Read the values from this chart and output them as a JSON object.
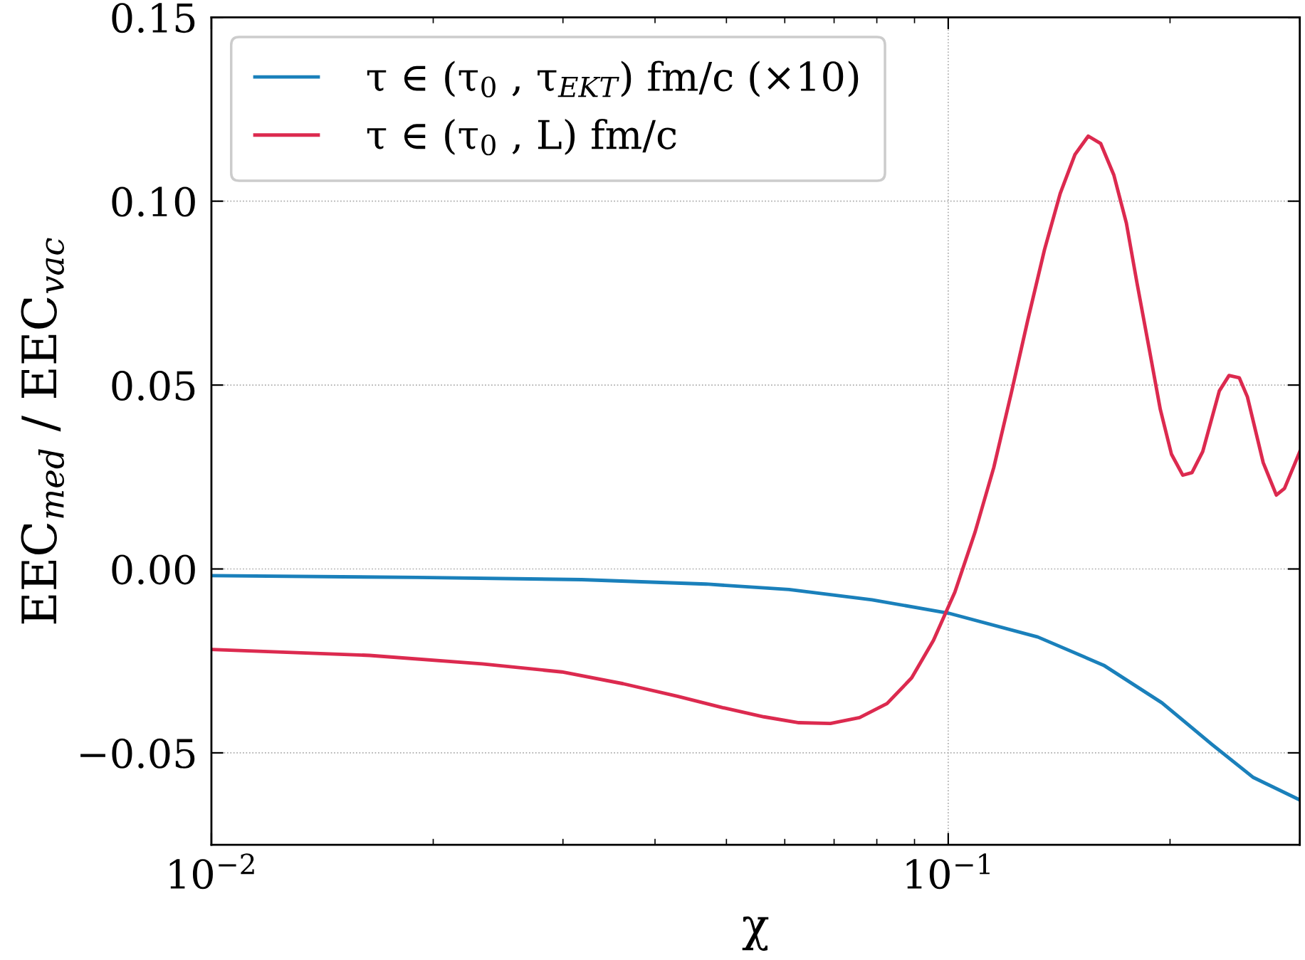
{
  "chart_data": {
    "type": "line",
    "xlabel": "χ",
    "ylabel": "EEC$_{med}$ / EEC$_{vac}$",
    "log": "x",
    "grid": true,
    "legend": "top left",
    "line_style": "solid",
    "marker": "none",
    "xlim": [
      0.01,
      0.3
    ],
    "ylim": [
      -0.075,
      0.15
    ],
    "xticks": [
      {
        "value": 0.01,
        "label": "10$^{−2}$"
      },
      {
        "value": 0.1,
        "label": "10$^{−1}$"
      }
    ],
    "yticks": [
      {
        "value": -0.05,
        "label": "−0.05"
      },
      {
        "value": 0.0,
        "label": "0.00"
      },
      {
        "value": 0.05,
        "label": "0.05"
      },
      {
        "value": 0.1,
        "label": "0.10"
      },
      {
        "value": 0.15,
        "label": "0.15"
      }
    ],
    "series": [
      {
        "name": "τ ∈ (τ$_{0}$ , τ$_{EKT}$) fm/c (×10)",
        "color": "#1a80bb",
        "x": [
          0.01,
          0.019,
          0.0318,
          0.0469,
          0.0608,
          0.0788,
          0.1,
          0.1323,
          0.1626,
          0.195,
          0.228,
          0.2595,
          0.3
        ],
        "values": [
          -0.0018,
          -0.0023,
          -0.0029,
          -0.0041,
          -0.0056,
          -0.0084,
          -0.012,
          -0.0185,
          -0.0262,
          -0.0364,
          -0.0477,
          -0.0567,
          -0.0628
        ]
      },
      {
        "name": "τ ∈ (τ$_{0}$ , L) fm/c",
        "color": "#dc2a4f",
        "x": [
          0.01,
          0.0164,
          0.0233,
          0.0299,
          0.0362,
          0.0429,
          0.0494,
          0.0562,
          0.0627,
          0.0692,
          0.0758,
          0.0826,
          0.0892,
          0.0955,
          0.1021,
          0.1087,
          0.1153,
          0.1218,
          0.1282,
          0.1351,
          0.1419,
          0.1486,
          0.1549,
          0.161,
          0.1678,
          0.1745,
          0.1804,
          0.1875,
          0.194,
          0.2009,
          0.2081,
          0.2142,
          0.2215,
          0.2333,
          0.2405,
          0.2483,
          0.2547,
          0.2676,
          0.2788,
          0.286,
          0.3
        ],
        "values": [
          -0.0219,
          -0.0235,
          -0.0258,
          -0.028,
          -0.0312,
          -0.0346,
          -0.0377,
          -0.0402,
          -0.0418,
          -0.042,
          -0.0404,
          -0.0366,
          -0.0296,
          -0.0194,
          -0.0063,
          0.0099,
          0.0276,
          0.0479,
          0.0676,
          0.0868,
          0.1021,
          0.1127,
          0.1177,
          0.1157,
          0.1071,
          0.094,
          0.0777,
          0.0596,
          0.0434,
          0.0312,
          0.0255,
          0.0262,
          0.0319,
          0.0484,
          0.0526,
          0.052,
          0.0468,
          0.0289,
          0.0201,
          0.0219,
          0.0319
        ]
      }
    ]
  }
}
